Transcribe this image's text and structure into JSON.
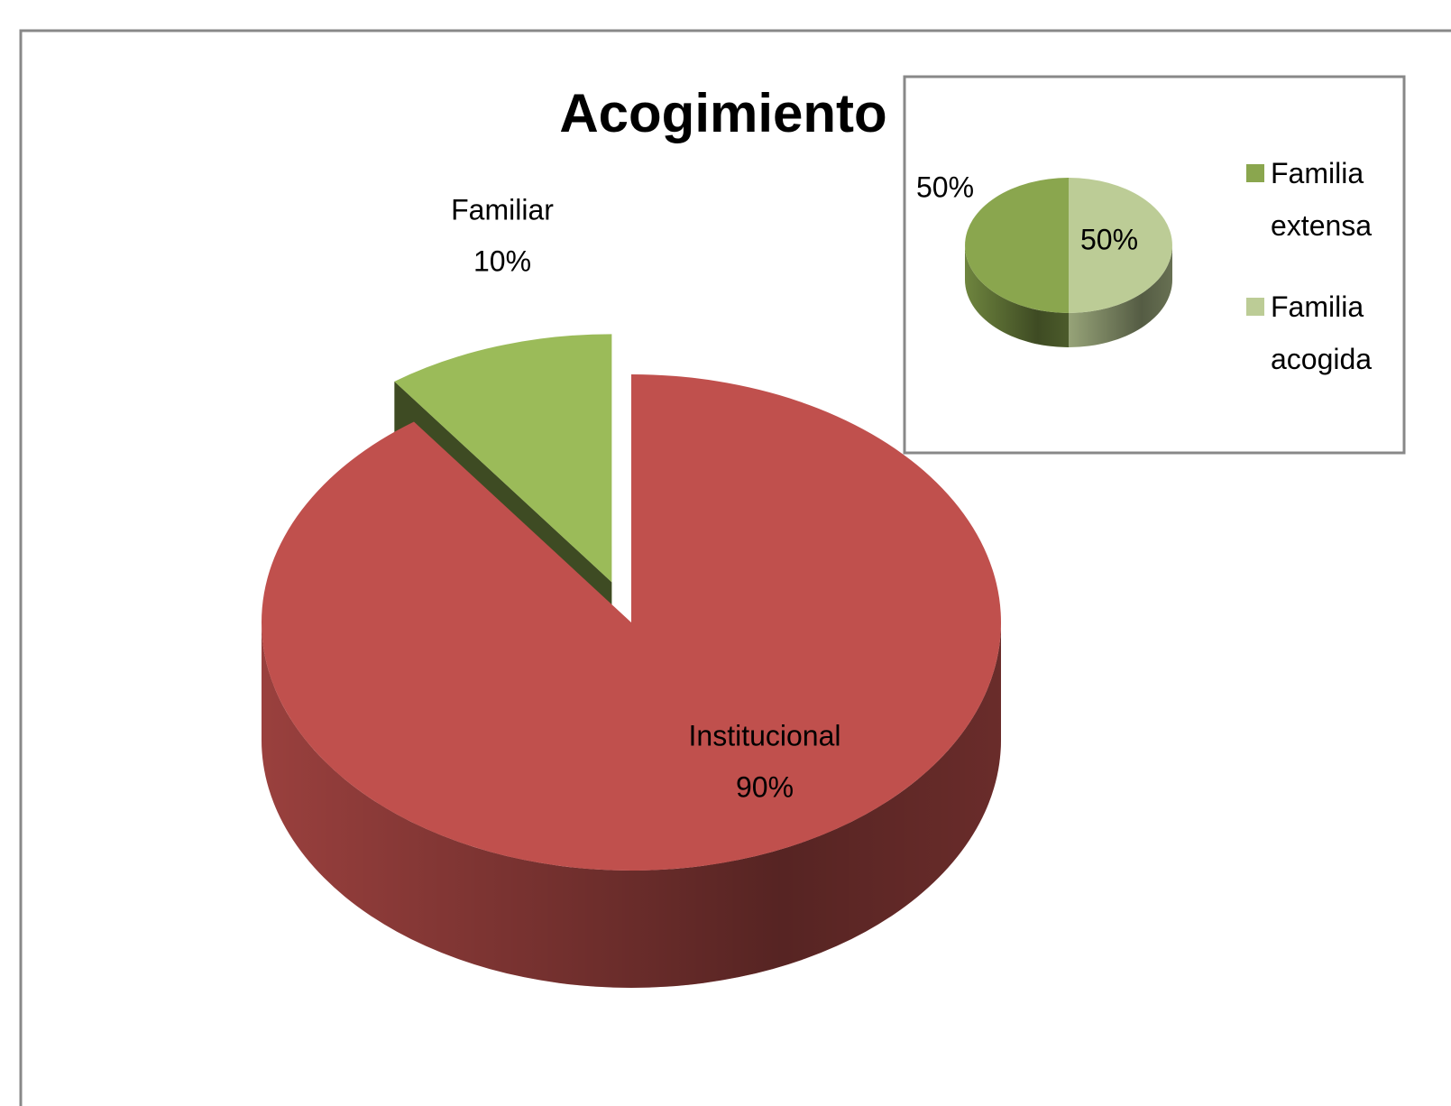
{
  "chart_data": [
    {
      "type": "pie3d",
      "title": "Acogimiento",
      "categories": [
        "Familiar",
        "Institucional"
      ],
      "values": [
        10,
        90
      ],
      "value_labels": [
        "10%",
        "90%"
      ],
      "colors": [
        "#9bbb59",
        "#c0504d"
      ]
    },
    {
      "type": "pie3d",
      "categories": [
        "Familia extensa",
        "Familia acogida"
      ],
      "values": [
        50,
        50
      ],
      "value_labels": [
        "50%",
        "50%"
      ],
      "colors": [
        "#8aa64e",
        "#bccc96"
      ],
      "legend": true
    }
  ]
}
